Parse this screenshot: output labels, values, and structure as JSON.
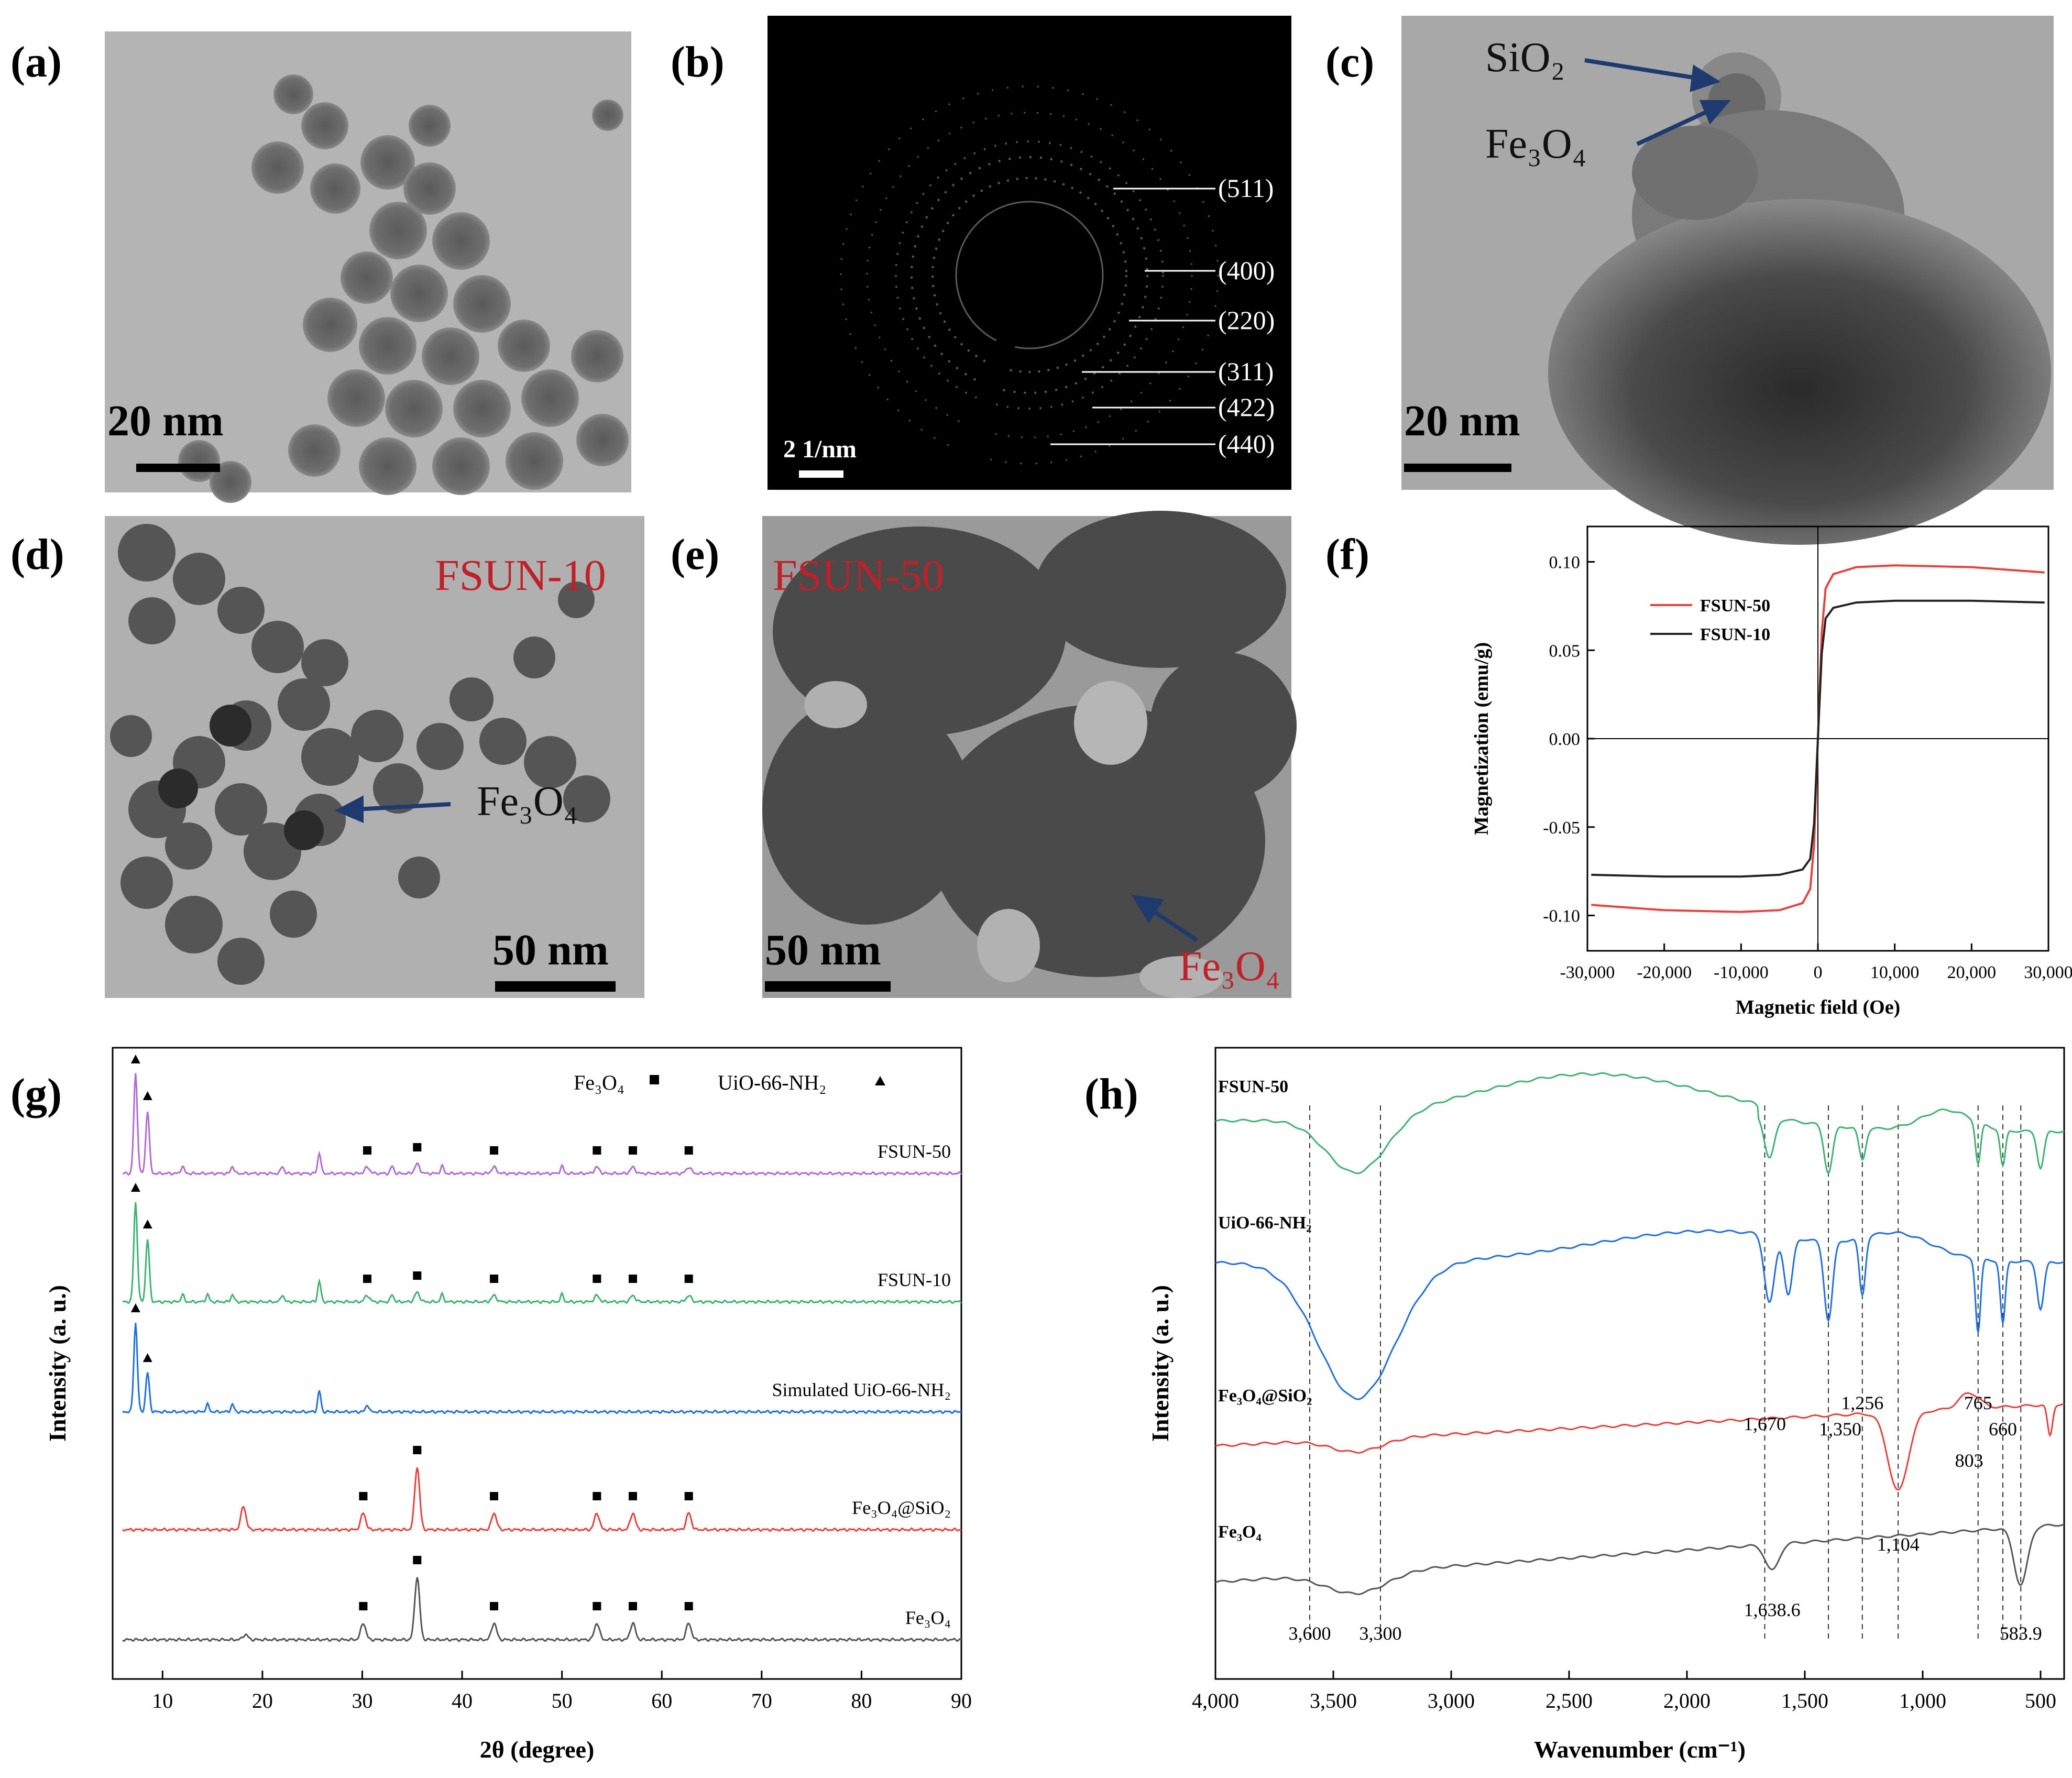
{
  "panels": {
    "a": {
      "label": "(a)",
      "scalebar": "20 nm"
    },
    "b": {
      "label": "(b)",
      "scalebar": "2 1/nm",
      "rings": [
        "(511)",
        "(400)",
        "(220)",
        "(311)",
        "(422)",
        "(440)"
      ]
    },
    "c": {
      "label": "(c)",
      "scalebar": "20 nm",
      "arrow_labels": [
        "SiO₂",
        "Fe₃O₄"
      ]
    },
    "d": {
      "label": "(d)",
      "scalebar": "50 nm",
      "sample": "FSUN-10",
      "arrow_label": "Fe₃O₄"
    },
    "e": {
      "label": "(e)",
      "scalebar": "50 nm",
      "sample": "FSUN-50",
      "arrow_label": "Fe₃O₄"
    },
    "f": {
      "label": "(f)"
    },
    "g": {
      "label": "(g)"
    },
    "h": {
      "label": "(h)"
    }
  },
  "colors": {
    "red": "#e8413c",
    "black": "#222222",
    "green": "#3cb371",
    "blue": "#1f6fe0",
    "purple": "#b06ad6",
    "gray": "#555555",
    "navy": "#1f3a6e",
    "labelred": "#c0202a"
  },
  "chart_data": [
    {
      "id": "f",
      "type": "line",
      "title": "",
      "xlabel": "Magnetic field (Oe)",
      "ylabel": "Magnetization (emu/g)",
      "xlim": [
        -30000,
        30000
      ],
      "ylim": [
        -0.12,
        0.12
      ],
      "xticks": [
        -30000,
        -20000,
        -10000,
        0,
        10000,
        20000,
        30000
      ],
      "xtick_labels": [
        "-30,000",
        "-20,000",
        "-10,000",
        "0",
        "10,000",
        "20,000",
        "30,000"
      ],
      "yticks": [
        -0.1,
        -0.05,
        0.0,
        0.05,
        0.1
      ],
      "ytick_labels": [
        "-0.10",
        "-0.05",
        "0.00",
        "0.05",
        "0.10"
      ],
      "legend_position": "top-left",
      "series": [
        {
          "name": "FSUN-50",
          "color": "red",
          "ms": 0.098,
          "x": [
            -29500,
            -20000,
            -10000,
            -5000,
            -2000,
            -1000,
            -500,
            0,
            500,
            1000,
            2000,
            5000,
            10000,
            20000,
            29500
          ],
          "y": [
            -0.094,
            -0.097,
            -0.098,
            -0.097,
            -0.093,
            -0.085,
            -0.06,
            0,
            0.06,
            0.085,
            0.093,
            0.097,
            0.098,
            0.097,
            0.094
          ]
        },
        {
          "name": "FSUN-10",
          "color": "black",
          "x": [
            -29500,
            -20000,
            -10000,
            -5000,
            -2000,
            -1000,
            -500,
            0,
            500,
            1000,
            2000,
            5000,
            10000,
            20000,
            29500
          ],
          "y": [
            -0.077,
            -0.078,
            -0.078,
            -0.077,
            -0.074,
            -0.068,
            -0.048,
            0,
            0.048,
            0.068,
            0.074,
            0.077,
            0.078,
            0.078,
            0.077
          ]
        }
      ]
    },
    {
      "id": "g",
      "type": "line",
      "title": "",
      "xlabel": "2θ (degree)",
      "ylabel": "Intensity (a. u.)",
      "xlim": [
        5,
        90
      ],
      "xticks": [
        10,
        20,
        30,
        40,
        50,
        60,
        70,
        80,
        90
      ],
      "legend_entries": [
        "Fe₃O₄",
        "UiO-66-NH₂"
      ],
      "series": [
        {
          "name": "FSUN-50",
          "color": "purple",
          "uio_peaks": [
            7.3,
            8.5
          ],
          "fe_peaks": [
            30.5,
            35.5,
            43.2,
            53.5,
            57.1,
            62.7
          ],
          "extra_peaks": [
            12.0,
            17.0,
            22.0,
            25.7,
            33.0,
            38.0,
            50.0
          ]
        },
        {
          "name": "FSUN-10",
          "color": "green",
          "uio_peaks": [
            7.3,
            8.5
          ],
          "fe_peaks": [
            30.5,
            35.5,
            43.2,
            53.5,
            57.1,
            62.7
          ],
          "extra_peaks": [
            12.0,
            14.5,
            17.0,
            22.0,
            25.7,
            33.0,
            38.0,
            50.0
          ]
        },
        {
          "name": "Simulated UiO-66-NH₂",
          "color": "blue",
          "uio_peaks": [
            7.3,
            8.5
          ],
          "extra_peaks": [
            14.5,
            17.0,
            25.7,
            30.5
          ]
        },
        {
          "name": "Fe₃O₄@SiO₂",
          "color": "red",
          "fe_peaks": [
            18.1,
            30.1,
            35.5,
            43.2,
            53.5,
            57.1,
            62.7
          ]
        },
        {
          "name": "Fe₃O₄",
          "color": "gray",
          "fe_peaks": [
            18.3,
            30.1,
            35.5,
            43.2,
            53.5,
            57.1,
            62.7
          ]
        }
      ]
    },
    {
      "id": "h",
      "type": "line",
      "title": "",
      "xlabel": "Wavenumber (cm⁻¹)",
      "ylabel": "Intensity (a. u.)",
      "xlim": [
        4000,
        400
      ],
      "xticks": [
        4000,
        3500,
        3000,
        2500,
        2000,
        1500,
        1000,
        500
      ],
      "xtick_labels": [
        "4,000",
        "3,500",
        "3,000",
        "2,500",
        "2,000",
        "1,500",
        "1,000",
        "500"
      ],
      "reference_lines": [
        3600,
        3300,
        1670,
        1400,
        1256,
        1104,
        765,
        660,
        583.9
      ],
      "annotations": [
        "3,600",
        "3,300",
        "1,670",
        "1,350",
        "1,256",
        "765",
        "660",
        "803",
        "1,104",
        "1,638.6",
        "583.9"
      ],
      "series": [
        {
          "name": "FSUN-50",
          "color": "green"
        },
        {
          "name": "UiO-66-NH₂",
          "color": "blue"
        },
        {
          "name": "Fe₃O₄@SiO₂",
          "color": "red"
        },
        {
          "name": "Fe₃O₄",
          "color": "gray"
        }
      ]
    }
  ]
}
